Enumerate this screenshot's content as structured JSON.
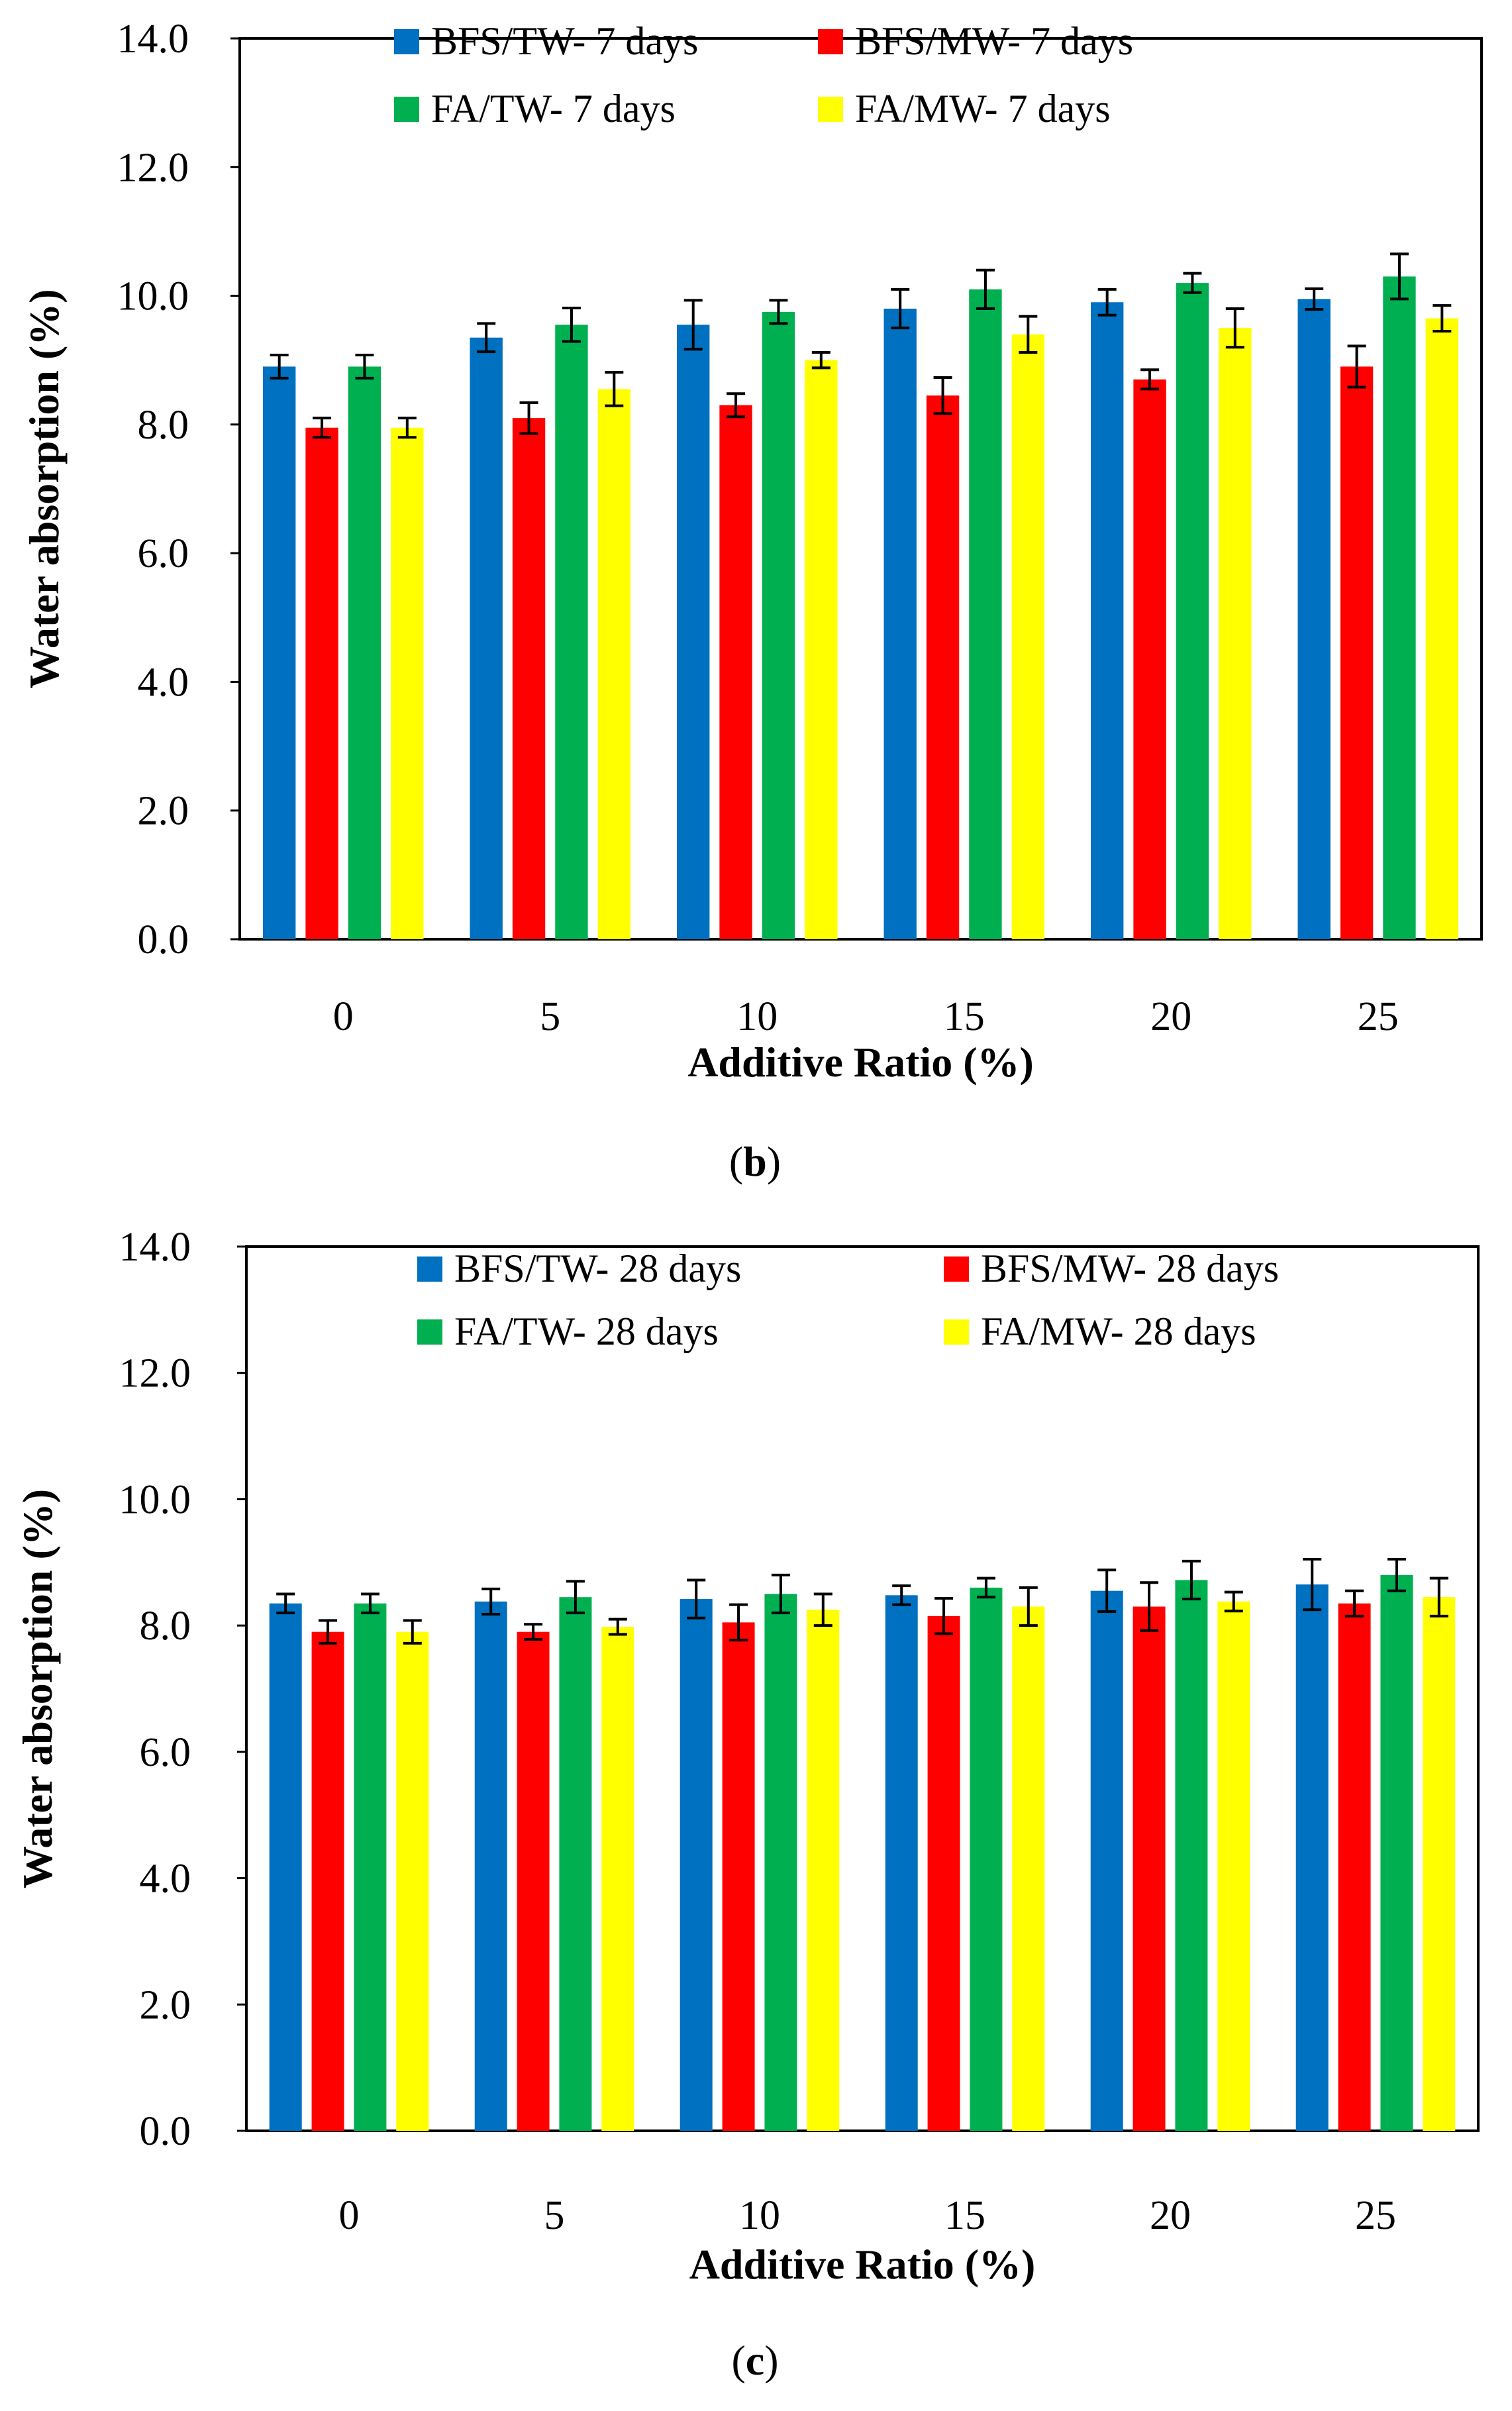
{
  "colors": {
    "series": [
      "#0070C0",
      "#FF0000",
      "#00B050",
      "#FFFF00"
    ],
    "axis": "#000000",
    "errorbar": "#000000"
  },
  "chart_data": [
    {
      "type": "bar",
      "panel": "(b)",
      "caption_open": "(",
      "caption_letter": "b",
      "caption_close": ")",
      "xlabel": "Additive Ratio (%)",
      "ylabel": "Water absorption (%)",
      "ylim": [
        0,
        14
      ],
      "yticks": [
        "0.0",
        "2.0",
        "4.0",
        "6.0",
        "8.0",
        "10.0",
        "12.0",
        "14.0"
      ],
      "categories": [
        "0",
        "5",
        "10",
        "15",
        "20",
        "25"
      ],
      "grid": false,
      "legend_position": "top",
      "series": [
        {
          "name": "BFS/TW- 7 days",
          "values": [
            8.9,
            9.35,
            9.55,
            9.8,
            9.9,
            9.95
          ],
          "errors": [
            0.18,
            0.22,
            0.38,
            0.3,
            0.2,
            0.16
          ]
        },
        {
          "name": "BFS/MW- 7 days",
          "values": [
            7.95,
            8.1,
            8.3,
            8.45,
            8.7,
            8.9
          ],
          "errors": [
            0.15,
            0.24,
            0.18,
            0.28,
            0.15,
            0.32
          ]
        },
        {
          "name": "FA/TW- 7 days",
          "values": [
            8.9,
            9.55,
            9.75,
            10.1,
            10.2,
            10.3
          ],
          "errors": [
            0.18,
            0.26,
            0.18,
            0.3,
            0.15,
            0.35
          ]
        },
        {
          "name": "FA/MW- 7 days",
          "values": [
            7.95,
            8.55,
            9.0,
            9.4,
            9.5,
            9.65
          ],
          "errors": [
            0.15,
            0.26,
            0.12,
            0.28,
            0.3,
            0.2
          ]
        }
      ]
    },
    {
      "type": "bar",
      "panel": "(c)",
      "caption_open": "(",
      "caption_letter": "c",
      "caption_close": ")",
      "xlabel": "Additive Ratio (%)",
      "ylabel": "Water absorption (%)",
      "ylim": [
        0,
        14
      ],
      "yticks": [
        "0.0",
        "2.0",
        "4.0",
        "6.0",
        "8.0",
        "10.0",
        "12.0",
        "14.0"
      ],
      "categories": [
        "0",
        "5",
        "10",
        "15",
        "20",
        "25"
      ],
      "grid": false,
      "legend_position": "top",
      "series": [
        {
          "name": "BFS/TW- 28 days",
          "values": [
            8.35,
            8.38,
            8.42,
            8.48,
            8.55,
            8.65
          ],
          "errors": [
            0.15,
            0.2,
            0.3,
            0.15,
            0.33,
            0.4
          ]
        },
        {
          "name": "BFS/MW- 28 days",
          "values": [
            7.9,
            7.9,
            8.05,
            8.15,
            8.3,
            8.35
          ],
          "errors": [
            0.18,
            0.12,
            0.28,
            0.28,
            0.38,
            0.2
          ]
        },
        {
          "name": "FA/TW- 28 days",
          "values": [
            8.35,
            8.45,
            8.5,
            8.6,
            8.72,
            8.8
          ],
          "errors": [
            0.15,
            0.25,
            0.3,
            0.15,
            0.3,
            0.25
          ]
        },
        {
          "name": "FA/MW- 28 days",
          "values": [
            7.9,
            7.98,
            8.25,
            8.3,
            8.38,
            8.45
          ],
          "errors": [
            0.18,
            0.12,
            0.25,
            0.3,
            0.15,
            0.3
          ]
        }
      ]
    }
  ]
}
